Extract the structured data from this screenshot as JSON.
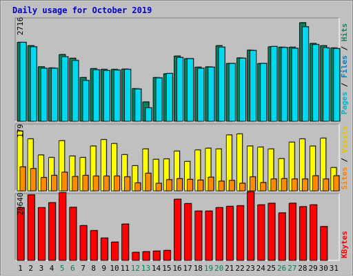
{
  "chart_data": {
    "type": "bar",
    "title": "Daily usage for October 2019",
    "categories": [
      "1",
      "2",
      "3",
      "4",
      "5",
      "6",
      "7",
      "8",
      "9",
      "10",
      "11",
      "12",
      "13",
      "14",
      "15",
      "16",
      "17",
      "18",
      "19",
      "20",
      "21",
      "22",
      "23",
      "24",
      "25",
      "26",
      "27",
      "28",
      "29",
      "30",
      "31"
    ],
    "weekend_days": [
      "5",
      "6",
      "12",
      "13",
      "19",
      "20",
      "26",
      "27"
    ],
    "panels": {
      "top": {
        "ymax_label": "2716",
        "ymax": 2716,
        "series": [
          {
            "name": "Hits",
            "values": [
              2130,
              2040,
              1470,
              1440,
              1800,
              1700,
              1180,
              1420,
              1400,
              1400,
              1410,
              880,
              520,
              1180,
              1280,
              1760,
              1690,
              1460,
              1470,
              2040,
              1560,
              1710,
              1920,
              1560,
              2010,
              2000,
              2000,
              2660,
              2100,
              2040,
              1980
            ]
          },
          {
            "name": "Files",
            "values": [
              2130,
              2010,
              1430,
              1430,
              1740,
              1640,
              1100,
              1390,
              1370,
              1380,
              1400,
              870,
              360,
              1170,
              1290,
              1720,
              1690,
              1430,
              1460,
              2000,
              1560,
              1700,
              1910,
              1560,
              2020,
              1990,
              1970,
              2550,
              2070,
              1980,
              1960
            ]
          },
          {
            "name": "Pages",
            "values": [
              0,
              0,
              0,
              0,
              0,
              0,
              0,
              0,
              0,
              0,
              0,
              0,
              0,
              0,
              0,
              0,
              0,
              0,
              0,
              0,
              0,
              0,
              0,
              0,
              0,
              0,
              0,
              0,
              0,
              0,
              0
            ]
          }
        ]
      },
      "middle": {
        "ymax_label": "179",
        "ymax": 179,
        "series": [
          {
            "name": "Visits",
            "values": [
              167,
              145,
              100,
              93,
              140,
              97,
              93,
              125,
              143,
              132,
              101,
              70,
              117,
              88,
              89,
              111,
              82,
              114,
              119,
              117,
              156,
              159,
              125,
              122,
              117,
              90,
              136,
              145,
              125,
              147,
              65
            ]
          },
          {
            "name": "Sites",
            "values": [
              67,
              62,
              37,
              43,
              52,
              40,
              43,
              41,
              41,
              41,
              39,
              22,
              49,
              21,
              31,
              34,
              32,
              30,
              38,
              27,
              29,
              21,
              39,
              23,
              33,
              34,
              33,
              33,
              42,
              33,
              42
            ]
          }
        ]
      },
      "bottom": {
        "ymax_label": "20640",
        "ymax": 20640,
        "series": [
          {
            "name": "KBytes",
            "values": [
              17000,
              21100,
              17000,
              18600,
              21800,
              17100,
              11200,
              9600,
              7200,
              5900,
              11700,
              2600,
              2800,
              3000,
              3200,
              19700,
              18300,
              15900,
              15900,
              17000,
              17400,
              17600,
              22100,
              17900,
              18400,
              15300,
              18400,
              17300,
              17900,
              10900,
              0
            ]
          }
        ]
      }
    },
    "legend_top": [
      {
        "label": "Pages",
        "color": "#00b0d0"
      },
      {
        "label": "Files",
        "color": "#0080c0"
      },
      {
        "label": "Hits",
        "color": "#208060"
      }
    ],
    "legend_middle": [
      {
        "label": "Sites",
        "color": "#ff8000"
      },
      {
        "label": "Visits",
        "color": "#e8c000"
      }
    ],
    "legend_bottom": [
      {
        "label": "KBytes",
        "color": "#ff0000"
      }
    ],
    "legend_separator": "/",
    "colors": {
      "hits": "#00805a",
      "files": "#00d8f0",
      "visits": "#ffff00",
      "sites": "#ff8c00",
      "kbytes": "#ff0000",
      "panel_bg": "#c0c0c0",
      "title": "#0000ff",
      "weekend_label": "#00805a"
    }
  }
}
